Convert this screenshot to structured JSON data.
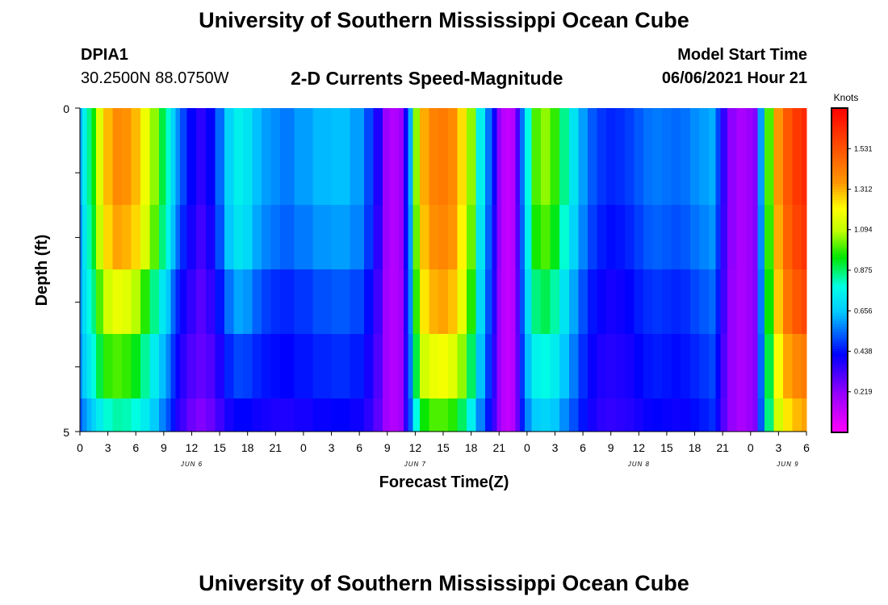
{
  "header": {
    "title": "University of Southern Mississippi Ocean Cube",
    "station": "DPIA1",
    "coordinates": "30.2500N  88.0750W",
    "subtitle": "2-D Currents Speed-Magnitude",
    "model_start_label": "Model Start Time",
    "model_start_value": "06/06/2021 Hour 21"
  },
  "footer": {
    "title": "University of Southern Mississippi Ocean Cube"
  },
  "chart_data": {
    "type": "heatmap",
    "title": "2-D Currents Speed-Magnitude",
    "xlabel": "Forecast Time(Z)",
    "ylabel": "Depth (ft)",
    "ylim": [
      0,
      5
    ],
    "y_tick_labels": [
      "0",
      "5"
    ],
    "x_range_hours": [
      0,
      78
    ],
    "x_tick_labels": [
      "0",
      "3",
      "6",
      "9",
      "12",
      "15",
      "18",
      "21",
      "0",
      "3",
      "6",
      "9",
      "12",
      "15",
      "18",
      "21",
      "0",
      "3",
      "6",
      "9",
      "12",
      "15",
      "18",
      "21",
      "0",
      "3",
      "6"
    ],
    "date_labels": [
      {
        "text": "JUN 6",
        "hour": 12
      },
      {
        "text": "JUN 7",
        "hour": 36
      },
      {
        "text": "JUN 8",
        "hour": 60
      },
      {
        "text": "JUN 9",
        "hour": 76
      }
    ],
    "colorbar": {
      "label": "Knots",
      "min": 0,
      "max": 1.75,
      "tick_labels": [
        "0.219",
        "0.438",
        "0.656",
        "0.875",
        "1.094",
        "1.312",
        "1.531"
      ],
      "tick_values": [
        0.219,
        0.438,
        0.656,
        0.875,
        1.094,
        1.312,
        1.531
      ]
    },
    "depth_bands": 5,
    "hours": [
      0,
      0.5,
      1,
      1.5,
      2,
      3,
      4,
      5,
      6,
      7,
      8,
      9,
      9.5,
      10,
      10.5,
      11,
      12,
      13,
      14,
      15,
      16,
      17,
      18,
      19,
      20,
      21,
      22,
      24,
      26,
      28,
      30,
      31,
      32,
      33,
      33.5,
      34,
      34.5,
      35,
      35.5,
      36,
      37,
      38,
      39,
      40,
      41,
      42,
      43,
      44,
      44.5,
      45,
      45.5,
      46,
      46.5,
      47,
      47.5,
      48,
      49,
      50,
      51,
      52,
      53,
      54,
      55,
      56,
      57,
      58,
      59,
      60,
      61,
      62,
      63,
      64,
      65,
      66,
      67,
      68,
      68.5,
      69,
      70,
      71,
      72,
      72.5,
      73,
      74,
      75,
      76,
      77,
      78
    ],
    "speeds": [
      [
        0.62,
        0.75,
        0.85,
        0.95,
        1.15,
        1.3,
        1.38,
        1.36,
        1.3,
        1.18,
        1.05,
        0.9,
        0.8,
        0.68,
        0.58,
        0.5,
        0.42,
        0.36,
        0.42,
        0.54,
        0.68,
        0.75,
        0.72,
        0.64,
        0.6,
        0.58,
        0.56,
        0.6,
        0.63,
        0.64,
        0.6,
        0.5,
        0.38,
        0.2,
        0.15,
        0.16,
        0.2,
        0.4,
        0.62,
        1.05,
        1.32,
        1.4,
        1.42,
        1.38,
        1.25,
        1.05,
        0.75,
        0.55,
        0.4,
        0.22,
        0.14,
        0.12,
        0.15,
        0.32,
        0.55,
        0.78,
        1.0,
        1.05,
        0.98,
        0.85,
        0.72,
        0.6,
        0.52,
        0.48,
        0.46,
        0.47,
        0.49,
        0.52,
        0.55,
        0.56,
        0.55,
        0.54,
        0.55,
        0.58,
        0.6,
        0.62,
        0.5,
        0.35,
        0.22,
        0.17,
        0.2,
        0.24,
        0.6,
        1.0,
        1.35,
        1.52,
        1.6,
        1.64
      ],
      [
        0.62,
        0.75,
        0.85,
        0.95,
        1.15,
        1.3,
        1.38,
        1.36,
        1.3,
        1.18,
        1.05,
        0.9,
        0.8,
        0.68,
        0.58,
        0.5,
        0.42,
        0.36,
        0.42,
        0.54,
        0.68,
        0.75,
        0.72,
        0.64,
        0.6,
        0.58,
        0.56,
        0.6,
        0.63,
        0.64,
        0.6,
        0.5,
        0.38,
        0.2,
        0.15,
        0.16,
        0.2,
        0.4,
        0.62,
        1.05,
        1.32,
        1.4,
        1.42,
        1.38,
        1.25,
        1.05,
        0.75,
        0.55,
        0.4,
        0.22,
        0.14,
        0.12,
        0.15,
        0.32,
        0.55,
        0.78,
        1.0,
        1.05,
        0.98,
        0.85,
        0.72,
        0.6,
        0.52,
        0.48,
        0.46,
        0.47,
        0.49,
        0.52,
        0.55,
        0.56,
        0.55,
        0.54,
        0.55,
        0.58,
        0.6,
        0.62,
        0.5,
        0.35,
        0.22,
        0.17,
        0.2,
        0.24,
        0.6,
        1.0,
        1.35,
        1.52,
        1.6,
        1.64
      ],
      [
        0.59,
        0.72,
        0.82,
        0.92,
        1.1,
        1.26,
        1.33,
        1.31,
        1.26,
        1.14,
        1.01,
        0.86,
        0.76,
        0.64,
        0.54,
        0.46,
        0.39,
        0.33,
        0.39,
        0.51,
        0.65,
        0.72,
        0.69,
        0.61,
        0.57,
        0.55,
        0.53,
        0.56,
        0.59,
        0.6,
        0.57,
        0.48,
        0.36,
        0.2,
        0.15,
        0.16,
        0.2,
        0.4,
        0.6,
        1.02,
        1.29,
        1.37,
        1.39,
        1.35,
        1.22,
        1.02,
        0.72,
        0.53,
        0.38,
        0.22,
        0.14,
        0.12,
        0.15,
        0.31,
        0.53,
        0.75,
        0.96,
        1.0,
        0.93,
        0.8,
        0.68,
        0.57,
        0.49,
        0.45,
        0.43,
        0.44,
        0.46,
        0.49,
        0.52,
        0.53,
        0.52,
        0.51,
        0.52,
        0.55,
        0.57,
        0.59,
        0.48,
        0.34,
        0.22,
        0.17,
        0.2,
        0.24,
        0.58,
        0.98,
        1.32,
        1.49,
        1.57,
        1.61
      ],
      [
        0.6,
        0.7,
        0.78,
        0.86,
        1.0,
        1.12,
        1.17,
        1.15,
        1.08,
        0.97,
        0.85,
        0.73,
        0.65,
        0.54,
        0.46,
        0.4,
        0.35,
        0.3,
        0.35,
        0.44,
        0.55,
        0.61,
        0.59,
        0.53,
        0.49,
        0.47,
        0.46,
        0.48,
        0.51,
        0.52,
        0.5,
        0.43,
        0.33,
        0.19,
        0.15,
        0.16,
        0.19,
        0.38,
        0.58,
        0.98,
        1.24,
        1.31,
        1.33,
        1.29,
        1.17,
        0.97,
        0.69,
        0.51,
        0.37,
        0.21,
        0.14,
        0.12,
        0.15,
        0.3,
        0.51,
        0.7,
        0.86,
        0.89,
        0.83,
        0.72,
        0.61,
        0.51,
        0.44,
        0.41,
        0.39,
        0.4,
        0.42,
        0.45,
        0.47,
        0.48,
        0.47,
        0.46,
        0.47,
        0.5,
        0.52,
        0.54,
        0.45,
        0.33,
        0.21,
        0.17,
        0.2,
        0.24,
        0.56,
        0.95,
        1.28,
        1.44,
        1.52,
        1.56
      ],
      [
        0.58,
        0.66,
        0.73,
        0.79,
        0.9,
        0.98,
        1.0,
        0.98,
        0.93,
        0.84,
        0.74,
        0.64,
        0.57,
        0.48,
        0.41,
        0.36,
        0.31,
        0.28,
        0.31,
        0.38,
        0.46,
        0.5,
        0.49,
        0.46,
        0.44,
        0.43,
        0.42,
        0.44,
        0.46,
        0.47,
        0.45,
        0.39,
        0.31,
        0.19,
        0.15,
        0.16,
        0.19,
        0.37,
        0.56,
        0.9,
        1.12,
        1.17,
        1.19,
        1.15,
        1.05,
        0.88,
        0.64,
        0.48,
        0.35,
        0.21,
        0.14,
        0.12,
        0.15,
        0.29,
        0.48,
        0.64,
        0.76,
        0.78,
        0.74,
        0.65,
        0.56,
        0.47,
        0.41,
        0.38,
        0.37,
        0.38,
        0.39,
        0.42,
        0.44,
        0.45,
        0.44,
        0.43,
        0.44,
        0.46,
        0.48,
        0.5,
        0.42,
        0.31,
        0.21,
        0.17,
        0.2,
        0.24,
        0.54,
        0.9,
        1.2,
        1.33,
        1.39,
        1.42
      ],
      [
        0.52,
        0.58,
        0.63,
        0.68,
        0.74,
        0.8,
        0.83,
        0.82,
        0.79,
        0.74,
        0.66,
        0.57,
        0.51,
        0.44,
        0.37,
        0.33,
        0.27,
        0.24,
        0.27,
        0.33,
        0.39,
        0.42,
        0.42,
        0.4,
        0.39,
        0.38,
        0.38,
        0.39,
        0.41,
        0.42,
        0.4,
        0.36,
        0.29,
        0.19,
        0.15,
        0.16,
        0.19,
        0.36,
        0.52,
        0.78,
        0.95,
        1.0,
        1.0,
        0.97,
        0.88,
        0.75,
        0.57,
        0.44,
        0.33,
        0.21,
        0.14,
        0.12,
        0.15,
        0.28,
        0.45,
        0.58,
        0.66,
        0.68,
        0.65,
        0.58,
        0.51,
        0.44,
        0.39,
        0.36,
        0.35,
        0.36,
        0.37,
        0.39,
        0.41,
        0.42,
        0.41,
        0.4,
        0.41,
        0.43,
        0.45,
        0.47,
        0.4,
        0.3,
        0.21,
        0.17,
        0.2,
        0.24,
        0.52,
        0.86,
        1.12,
        1.24,
        1.3,
        1.33
      ]
    ]
  }
}
